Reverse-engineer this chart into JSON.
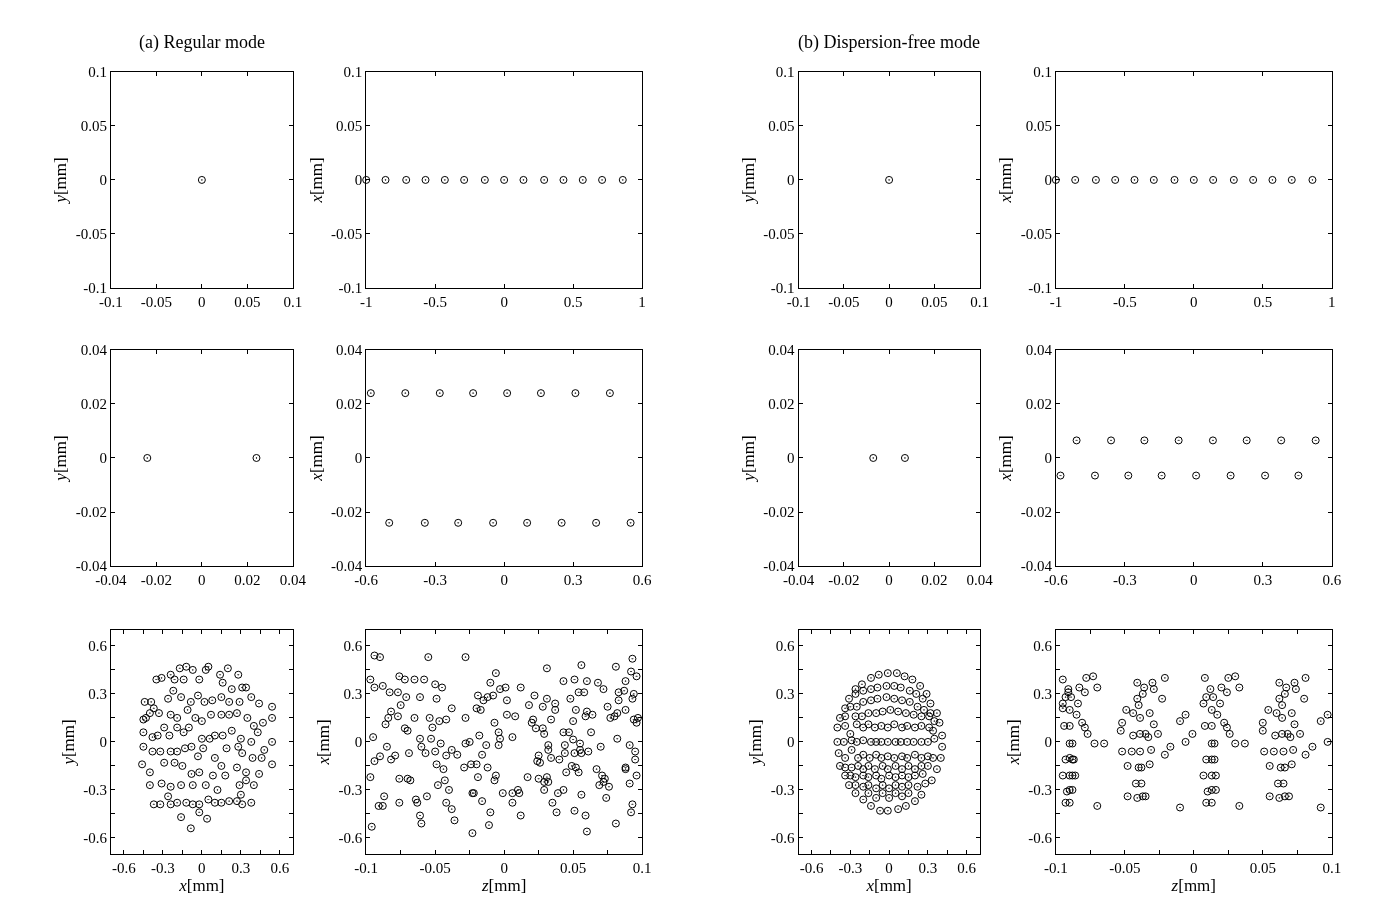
{
  "chart_data": [
    {
      "type": "scatter",
      "title": "(a) Regular mode",
      "ylabel": "y[mm]",
      "marker": "circle",
      "color": "#000000",
      "x": [
        0
      ],
      "values": [
        0
      ],
      "xlim": [
        -0.1,
        0.1
      ],
      "ylim": [
        -0.1,
        0.1
      ],
      "xticks": [
        -0.1,
        -0.05,
        0,
        0.05,
        0.1
      ],
      "yticks": [
        -0.1,
        -0.05,
        0,
        0.05,
        0.1
      ]
    },
    {
      "type": "scatter",
      "ylabel": "x[mm]",
      "marker": "circle",
      "color": "#000000",
      "x": [
        -1,
        -0.86,
        -0.71,
        -0.57,
        -0.43,
        -0.29,
        -0.14,
        0,
        0.14,
        0.29,
        0.43,
        0.57,
        0.71,
        0.86
      ],
      "values": [
        0,
        0,
        0,
        0,
        0,
        0,
        0,
        0,
        0,
        0,
        0,
        0,
        0,
        0
      ],
      "xlim": [
        -1,
        1
      ],
      "ylim": [
        -0.1,
        0.1
      ],
      "xticks": [
        -1,
        -0.5,
        0,
        0.5,
        1
      ],
      "yticks": [
        -0.1,
        -0.05,
        0,
        0.05,
        0.1
      ]
    },
    {
      "type": "scatter",
      "title": "(b) Dispersion-free mode",
      "ylabel": "y[mm]",
      "marker": "circle",
      "color": "#000000",
      "x": [
        0
      ],
      "values": [
        0
      ],
      "xlim": [
        -0.1,
        0.1
      ],
      "ylim": [
        -0.1,
        0.1
      ],
      "xticks": [
        -0.1,
        -0.05,
        0,
        0.05,
        0.1
      ],
      "yticks": [
        -0.1,
        -0.05,
        0,
        0.05,
        0.1
      ]
    },
    {
      "type": "scatter",
      "ylabel": "x[mm]",
      "marker": "circle",
      "color": "#000000",
      "x": [
        -1,
        -0.86,
        -0.71,
        -0.57,
        -0.43,
        -0.29,
        -0.14,
        0,
        0.14,
        0.29,
        0.43,
        0.57,
        0.71,
        0.86
      ],
      "values": [
        0,
        0,
        0,
        0,
        0,
        0,
        0,
        0,
        0,
        0,
        0,
        0,
        0,
        0
      ],
      "xlim": [
        -1,
        1
      ],
      "ylim": [
        -0.1,
        0.1
      ],
      "xticks": [
        -1,
        -0.5,
        0,
        0.5,
        1
      ],
      "yticks": [
        -0.1,
        -0.05,
        0,
        0.05,
        0.1
      ]
    },
    {
      "type": "scatter",
      "ylabel": "y[mm]",
      "marker": "circle",
      "color": "#000000",
      "x": [
        -0.024,
        0.024
      ],
      "values": [
        0,
        0
      ],
      "xlim": [
        -0.04,
        0.04
      ],
      "ylim": [
        -0.04,
        0.04
      ],
      "xticks": [
        -0.04,
        -0.02,
        0,
        0.02,
        0.04
      ],
      "yticks": [
        -0.04,
        -0.02,
        0,
        0.02,
        0.04
      ]
    },
    {
      "type": "scatter",
      "ylabel": "x[mm]",
      "marker": "circle",
      "color": "#000000",
      "x": [
        -0.58,
        -0.43,
        -0.28,
        -0.135,
        0.013,
        0.16,
        0.31,
        0.46,
        -0.5,
        -0.345,
        -0.2,
        -0.048,
        0.1,
        0.25,
        0.4,
        0.55
      ],
      "values": [
        0.024,
        0.024,
        0.024,
        0.024,
        0.024,
        0.024,
        0.024,
        0.024,
        -0.024,
        -0.024,
        -0.024,
        -0.024,
        -0.024,
        -0.024,
        -0.024,
        -0.024
      ],
      "xlim": [
        -0.6,
        0.6
      ],
      "ylim": [
        -0.04,
        0.04
      ],
      "xticks": [
        -0.6,
        -0.3,
        0,
        0.3,
        0.6
      ],
      "yticks": [
        -0.04,
        -0.02,
        0,
        0.02,
        0.04
      ]
    },
    {
      "type": "scatter",
      "ylabel": "y[mm]",
      "marker": "circle",
      "color": "#000000",
      "x": [
        -0.007,
        0.007
      ],
      "values": [
        0,
        0
      ],
      "xlim": [
        -0.04,
        0.04
      ],
      "ylim": [
        -0.04,
        0.04
      ],
      "xticks": [
        -0.04,
        -0.02,
        0,
        0.02,
        0.04
      ],
      "yticks": [
        -0.04,
        -0.02,
        0,
        0.02,
        0.04
      ]
    },
    {
      "type": "scatter",
      "ylabel": "x[mm]",
      "marker": "circle",
      "color": "#000000",
      "x": [
        -0.51,
        -0.36,
        -0.215,
        -0.066,
        0.083,
        0.23,
        0.38,
        0.53,
        -0.58,
        -0.43,
        -0.285,
        -0.14,
        0.01,
        0.16,
        0.31,
        0.455
      ],
      "values": [
        0.0065,
        0.0065,
        0.0065,
        0.0065,
        0.0065,
        0.0065,
        0.0065,
        0.0065,
        -0.0065,
        -0.0065,
        -0.0065,
        -0.0065,
        -0.0065,
        -0.0065,
        -0.0065,
        -0.0065
      ],
      "xlim": [
        -0.6,
        0.6
      ],
      "ylim": [
        -0.04,
        0.04
      ],
      "xticks": [
        -0.6,
        -0.3,
        0,
        0.3,
        0.6
      ],
      "yticks": [
        -0.04,
        -0.02,
        0,
        0.02,
        0.04
      ]
    },
    {
      "type": "scatter",
      "xlabel": "x[mm]",
      "ylabel": "y[mm]",
      "marker": "circle",
      "color": "#000000",
      "xlim": [
        -0.7,
        0.7
      ],
      "ylim": [
        -0.7,
        0.7
      ],
      "xticks": [
        -0.6,
        {
          "value": -0.45,
          "label": null
        },
        -0.3,
        {
          "value": -0.15,
          "label": null
        },
        0,
        {
          "value": 0.15,
          "label": null
        },
        0.3,
        {
          "value": 0.45,
          "label": null
        },
        0.6
      ],
      "yticks": [
        -0.6,
        {
          "value": -0.45,
          "label": null
        },
        -0.3,
        {
          "value": -0.15,
          "label": null
        },
        0,
        {
          "value": 0.15,
          "label": null
        },
        0.3,
        {
          "value": 0.45,
          "label": null
        },
        0.6
      ],
      "x": [
        -0.17,
        -0.12,
        -0.07,
        0.03,
        0.05,
        0.2,
        0.28,
        0.14,
        -0.35,
        -0.31,
        -0.24,
        -0.21,
        -0.14,
        -0.02,
        0.16,
        0.23,
        0.31,
        0.34,
        -0.22,
        -0.26,
        -0.16,
        -0.085,
        -0.03,
        0.02,
        0.08,
        0.15,
        0.21,
        0.29,
        0.38,
        0.44,
        0.54,
        -0.44,
        -0.39,
        -0.37,
        -0.45,
        -0.43,
        -0.4,
        -0.33,
        -0.24,
        -0.19,
        -0.11,
        -0.05,
        0,
        0.07,
        0.15,
        0.21,
        0.27,
        0.35,
        0.4,
        0.47,
        0.54,
        -0.45,
        -0.38,
        -0.34,
        -0.29,
        -0.25,
        -0.19,
        -0.14,
        -0.1,
        0,
        0.06,
        0.1,
        0.16,
        0.23,
        0.3,
        0.38,
        0.43,
        0.54,
        -0.45,
        -0.38,
        -0.32,
        -0.24,
        -0.19,
        -0.13,
        -0.08,
        -0.03,
        0.01,
        0.1,
        0.19,
        0.28,
        0.31,
        0.39,
        0.46,
        0.48,
        0.54,
        -0.46,
        -0.4,
        -0.29,
        -0.21,
        -0.15,
        -0.08,
        -0.02,
        0.085,
        0.15,
        0.18,
        0.27,
        0.34,
        0.44,
        -0.4,
        -0.31,
        -0.24,
        -0.16,
        -0.07,
        0.03,
        0.12,
        0.29,
        0.34,
        0.4,
        -0.37,
        -0.32,
        -0.26,
        -0.24,
        -0.19,
        -0.12,
        -0.07,
        -0.02,
        0.05,
        0.1,
        0.15,
        0.21,
        0.27,
        0.3,
        0.31,
        0.38,
        -0.16,
        0.04,
        -0.085,
        -0.02
      ],
      "values": [
        0.46,
        0.47,
        0.45,
        0.45,
        0.47,
        0.46,
        0.42,
        0.42,
        0.39,
        0.4,
        0.42,
        0.39,
        0.39,
        0.39,
        0.37,
        0.33,
        0.34,
        0.34,
        0.32,
        0.27,
        0.28,
        0.25,
        0.29,
        0.25,
        0.26,
        0.28,
        0.25,
        0.25,
        0.28,
        0.24,
        0.22,
        0.25,
        0.25,
        0.21,
        0.14,
        0.15,
        0.18,
        0.18,
        0.17,
        0.15,
        0.2,
        0.15,
        0.13,
        0.17,
        0.17,
        0.17,
        0.18,
        0.15,
        0.1,
        0.12,
        0.15,
        0.06,
        0.03,
        0.04,
        0.09,
        0.04,
        0.09,
        0.06,
        0.09,
        0.02,
        0.02,
        0.04,
        0.04,
        0.07,
        0.02,
        0,
        0.06,
        0,
        -0.03,
        -0.06,
        -0.06,
        -0.06,
        -0.06,
        -0.04,
        -0.03,
        -0.09,
        -0.04,
        -0.1,
        -0.04,
        -0.03,
        -0.07,
        -0.1,
        -0.1,
        -0.05,
        -0.14,
        -0.14,
        -0.19,
        -0.13,
        -0.13,
        -0.15,
        -0.2,
        -0.19,
        -0.21,
        -0.15,
        -0.21,
        -0.16,
        -0.19,
        -0.2,
        -0.27,
        -0.26,
        -0.28,
        -0.27,
        -0.27,
        -0.27,
        -0.3,
        -0.27,
        -0.24,
        -0.27,
        -0.39,
        -0.39,
        -0.34,
        -0.39,
        -0.38,
        -0.38,
        -0.39,
        -0.39,
        -0.36,
        -0.38,
        -0.38,
        -0.37,
        -0.37,
        -0.33,
        -0.39,
        -0.38,
        -0.47,
        -0.48,
        -0.54,
        -0.44
      ]
    },
    {
      "type": "scatter",
      "xlabel": "z[mm]",
      "ylabel": "x[mm]",
      "marker": "circle",
      "color": "#000000",
      "xlim": [
        -0.1,
        0.1
      ],
      "ylim": [
        -0.7,
        0.7
      ],
      "xticks": [
        -0.1,
        {
          "value": -0.075,
          "label": null
        },
        -0.05,
        {
          "value": -0.025,
          "label": null
        },
        0,
        {
          "value": 0.025,
          "label": null
        },
        0.05,
        {
          "value": 0.075,
          "label": null
        },
        0.1
      ],
      "yticks": [
        -0.6,
        {
          "value": -0.45,
          "label": null
        },
        -0.3,
        {
          "value": -0.15,
          "label": null
        },
        0,
        {
          "value": 0.15,
          "label": null
        },
        0.3,
        {
          "value": 0.45,
          "label": null
        },
        0.6
      ],
      "x": [
        -0.097,
        -0.097,
        -0.096,
        -0.095,
        -0.094,
        -0.094,
        -0.09,
        -0.094,
        -0.091,
        -0.09,
        -0.088,
        -0.088,
        -0.087,
        -0.086,
        -0.085,
        -0.084,
        -0.083,
        -0.082,
        -0.082,
        -0.079,
        -0.077,
        -0.077,
        -0.076,
        -0.076,
        -0.076,
        -0.075,
        -0.072,
        -0.072,
        -0.071,
        -0.07,
        -0.07,
        -0.069,
        -0.068,
        -0.065,
        -0.065,
        -0.064,
        -0.063,
        -0.061,
        -0.061,
        -0.061,
        -0.06,
        -0.06,
        -0.058,
        -0.057,
        -0.056,
        -0.055,
        -0.054,
        -0.053,
        -0.052,
        -0.05,
        -0.049,
        -0.049,
        -0.05,
        -0.048,
        -0.047,
        -0.046,
        -0.045,
        -0.044,
        -0.043,
        -0.042,
        -0.042,
        -0.042,
        -0.04,
        -0.038,
        -0.038,
        -0.038,
        -0.036,
        -0.034,
        -0.029,
        -0.028,
        -0.028,
        -0.028,
        -0.025,
        -0.024,
        -0.023,
        -0.023,
        -0.022,
        -0.02,
        -0.02,
        -0.019,
        -0.019,
        -0.018,
        -0.017,
        -0.016,
        -0.016,
        -0.015,
        -0.013,
        -0.012,
        -0.012,
        -0.011,
        -0.01,
        -0.01,
        -0.008,
        -0.007,
        -0.007,
        -0.006,
        -0.006,
        -0.004,
        -0.004,
        -0.003,
        -0.003,
        -0.001,
        0.001,
        0.002,
        0.002,
        0.006,
        0.006,
        0.006,
        0.008,
        0.01,
        0.011,
        0.012,
        0.012,
        0.017,
        0.018,
        0.02,
        0.021,
        0.022,
        0.023,
        0.024,
        0.025,
        0.025,
        0.026,
        0.028,
        0.028,
        0.029,
        0.029,
        0.029,
        0.031,
        0.031,
        0.031,
        0.032,
        0.032,
        0.032,
        0.034,
        0.034,
        0.035,
        0.037,
        0.037,
        0.038,
        0.039,
        0.04,
        0.043,
        0.043,
        0.043,
        0.044,
        0.044,
        0.045,
        0.047,
        0.048,
        0.049,
        0.05,
        0.05,
        0.051,
        0.051,
        0.051,
        0.052,
        0.052,
        0.054,
        0.054,
        0.055,
        0.055,
        0.056,
        0.056,
        0.056,
        0.058,
        0.059,
        0.059,
        0.06,
        0.06,
        0.06,
        0.061,
        0.063,
        0.064,
        0.067,
        0.068,
        0.069,
        0.07,
        0.071,
        0.072,
        0.072,
        0.073,
        0.075,
        0.074,
        0.076,
        0.077,
        0.08,
        0.081,
        0.081,
        0.082,
        0.082,
        0.083,
        0.083,
        0.087,
        0.088,
        0.088,
        0.088,
        0.088,
        0.091,
        0.091,
        0.092,
        0.092,
        0.093,
        0.093,
        0.093,
        0.094,
        0.094,
        0.095,
        0.095,
        0.096,
        0.096,
        0.096,
        0.097
      ],
      "values": [
        -0.22,
        0.39,
        -0.53,
        0.03,
        0.34,
        0.54,
        0.53,
        -0.12,
        -0.4,
        -0.09,
        0.35,
        -0.4,
        -0.34,
        0.11,
        -0.03,
        0.15,
        0.31,
        0.19,
        -0.11,
        -0.085,
        0.16,
        0.31,
        0.41,
        -0.38,
        -0.23,
        0.23,
        0.085,
        0.39,
        0.28,
        0.07,
        -0.23,
        -0.07,
        -0.24,
        0.15,
        0.39,
        -0.36,
        -0.38,
        0.02,
        -0.46,
        0.28,
        -0.03,
        -0.51,
        0.39,
        -0.07,
        -0.34,
        0.53,
        0.15,
        0.02,
        0.09,
        0.36,
        0.27,
        -0.14,
        -0.06,
        -0.27,
        0.13,
        -0.01,
        0.34,
        -0.17,
        -0.24,
        -0.085,
        -0.38,
        0.14,
        -0.3,
        0.21,
        -0.42,
        -0.05,
        -0.49,
        -0.08,
        -0.16,
        0.15,
        0.53,
        -0.01,
        0,
        -0.14,
        -0.32,
        -0.57,
        -0.32,
        -0.14,
        0.21,
        -0.22,
        0.29,
        0.04,
        0.2,
        -0.08,
        -0.37,
        0.26,
        -0.02,
        -0.16,
        0.28,
        -0.52,
        -0.44,
        0.37,
        0.29,
        -0.24,
        0.12,
        0.43,
        -0.21,
        0.06,
        -0.02,
        0.33,
        0.02,
        -0.32,
        0.34,
        0.26,
        0.17,
        -0.32,
        -0.38,
        0.03,
        0.16,
        -0.3,
        -0.32,
        -0.46,
        0.34,
        -0.22,
        0.23,
        0.12,
        0.14,
        0.29,
        0.085,
        -0.12,
        -0.23,
        -0.085,
        -0.13,
        0.22,
        0.085,
        0.05,
        -0.25,
        -0.3,
        -0.22,
        0.27,
        0.46,
        -0.25,
        -0.05,
        -0.02,
        -0.1,
        0.14,
        -0.38,
        0.24,
        0.2,
        -0.44,
        -0.32,
        -0.11,
        -0.3,
        0.38,
        0.06,
        -0.02,
        -0.07,
        -0.19,
        0.06,
        0.27,
        -0.15,
        0.015,
        0.13,
        -0.07,
        0.39,
        -0.43,
        -0.16,
        0.2,
        0.31,
        -0.19,
        -0.01,
        -0.05,
        -0.07,
        0.48,
        -0.33,
        0.31,
        -0.46,
        0.16,
        -0.56,
        0.38,
        0.19,
        -0.06,
        0.06,
        0.17,
        -0.17,
        0.37,
        -0.27,
        -0.03,
        -0.21,
        0.33,
        -0.25,
        -0.23,
        0.22,
        -0.35,
        -0.28,
        0.15,
        0.16,
        0.47,
        -0.51,
        0.18,
        0.02,
        0.26,
        0.31,
        0.32,
        0.2,
        -0.16,
        0.38,
        -0.17,
        -0.02,
        -0.26,
        -0.44,
        0.44,
        0.27,
        -0.39,
        0.52,
        0.3,
        0.14,
        -0.06,
        -0.11,
        0.12,
        0.41,
        -0.21,
        0.15
      ]
    },
    {
      "type": "scatter",
      "xlabel": "x[mm]",
      "ylabel": "y[mm]",
      "marker": "circle",
      "color": "#000000",
      "xlim": [
        -0.7,
        0.7
      ],
      "ylim": [
        -0.7,
        0.7
      ],
      "xticks": [
        -0.6,
        {
          "value": -0.45,
          "label": null
        },
        -0.3,
        {
          "value": -0.15,
          "label": null
        },
        0,
        {
          "value": 0.15,
          "label": null
        },
        0.3,
        {
          "value": 0.45,
          "label": null
        },
        0.6
      ],
      "yticks": [
        -0.6,
        {
          "value": -0.45,
          "label": null
        },
        -0.3,
        {
          "value": -0.15,
          "label": null
        },
        0,
        {
          "value": 0.15,
          "label": null
        },
        0.3,
        {
          "value": 0.45,
          "label": null
        },
        0.6
      ],
      "x": [
        -0.26,
        -0.21,
        -0.14,
        -0.08,
        -0.01,
        0.06,
        0.12,
        0.18,
        0.24,
        0.29,
        -0.31,
        -0.26,
        -0.2,
        -0.14,
        -0.09,
        -0.02,
        0.04,
        0.09,
        0.16,
        0.21,
        0.26,
        0.32,
        -0.34,
        -0.3,
        -0.25,
        -0.2,
        -0.14,
        -0.09,
        -0.02,
        0.04,
        0.1,
        0.16,
        0.22,
        0.27,
        0.32,
        0.37,
        -0.38,
        -0.34,
        -0.26,
        -0.21,
        -0.16,
        -0.1,
        -0.05,
        0.01,
        0.07,
        0.13,
        0.19,
        0.25,
        0.31,
        0.35,
        0.39,
        -0.4,
        -0.34,
        -0.3,
        -0.25,
        -0.2,
        -0.16,
        -0.11,
        -0.06,
        -0.01,
        0.04,
        0.1,
        0.14,
        0.2,
        0.25,
        0.31,
        0.34,
        0.41,
        -0.4,
        -0.35,
        -0.29,
        -0.25,
        -0.2,
        -0.14,
        -0.1,
        -0.06,
        -0.01,
        0.05,
        0.09,
        0.14,
        0.19,
        0.25,
        0.3,
        0.35,
        0.41,
        -0.39,
        -0.34,
        -0.29,
        -0.24,
        -0.2,
        -0.15,
        -0.1,
        -0.06,
        -0.01,
        0.04,
        0.1,
        0.14,
        0.2,
        0.25,
        0.3,
        0.34,
        0.4,
        -0.38,
        -0.34,
        -0.29,
        -0.24,
        -0.2,
        -0.16,
        -0.11,
        -0.05,
        -0.01,
        0.05,
        0.1,
        0.15,
        0.2,
        0.25,
        0.3,
        0.37,
        -0.34,
        -0.3,
        -0.26,
        -0.2,
        -0.16,
        -0.1,
        -0.06,
        0,
        0.05,
        0.1,
        0.15,
        0.2,
        0.26,
        0.33,
        -0.31,
        -0.26,
        -0.2,
        -0.16,
        -0.1,
        -0.05,
        0,
        0.05,
        0.1,
        0.15,
        0.22,
        0.28,
        -0.26,
        -0.2,
        -0.16,
        -0.1,
        -0.05,
        0,
        0.05,
        0.1,
        0.15,
        0.2,
        0.25,
        -0.14,
        -0.07,
        -0.01,
        0.07,
        0.13
      ],
      "values": [
        0.33,
        0.36,
        0.4,
        0.42,
        0.43,
        0.43,
        0.41,
        0.39,
        0.35,
        0.3,
        0.27,
        0.3,
        0.32,
        0.33,
        0.34,
        0.35,
        0.35,
        0.34,
        0.32,
        0.3,
        0.27,
        0.24,
        0.21,
        0.22,
        0.22,
        0.25,
        0.26,
        0.27,
        0.28,
        0.27,
        0.26,
        0.25,
        0.22,
        0.2,
        0.18,
        0.18,
        0.15,
        0.16,
        0.16,
        0.16,
        0.18,
        0.18,
        0.19,
        0.2,
        0.19,
        0.18,
        0.17,
        0.16,
        0.16,
        0.13,
        0.12,
        0.09,
        0.1,
        0.05,
        0.11,
        0.09,
        0.11,
        0.09,
        0.1,
        0.09,
        0.11,
        0.09,
        0.1,
        0.09,
        0.1,
        0.09,
        0.07,
        0.04,
        0,
        0,
        0.01,
        0,
        0.01,
        0,
        0,
        0,
        0,
        0,
        0,
        0,
        0,
        0,
        0,
        0.02,
        -0.03,
        -0.07,
        -0.1,
        -0.05,
        -0.1,
        -0.08,
        -0.1,
        -0.08,
        -0.1,
        -0.09,
        -0.1,
        -0.09,
        -0.1,
        -0.08,
        -0.1,
        -0.09,
        -0.1,
        -0.1,
        -0.15,
        -0.16,
        -0.16,
        -0.15,
        -0.17,
        -0.15,
        -0.17,
        -0.15,
        -0.17,
        -0.15,
        -0.17,
        -0.15,
        -0.17,
        -0.15,
        -0.15,
        -0.17,
        -0.21,
        -0.21,
        -0.22,
        -0.21,
        -0.22,
        -0.21,
        -0.23,
        -0.21,
        -0.22,
        -0.21,
        -0.22,
        -0.21,
        -0.2,
        -0.24,
        -0.27,
        -0.27,
        -0.28,
        -0.27,
        -0.29,
        -0.27,
        -0.29,
        -0.27,
        -0.28,
        -0.27,
        -0.28,
        -0.26,
        -0.32,
        -0.36,
        -0.32,
        -0.35,
        -0.32,
        -0.35,
        -0.32,
        -0.34,
        -0.32,
        -0.37,
        -0.33,
        -0.4,
        -0.43,
        -0.43,
        -0.42,
        -0.4
      ]
    },
    {
      "type": "scatter",
      "xlabel": "z[mm]",
      "ylabel": "x[mm]",
      "marker": "circle",
      "color": "#000000",
      "xlim": [
        -0.1,
        0.1
      ],
      "ylim": [
        -0.7,
        0.7
      ],
      "xticks": [
        -0.1,
        {
          "value": -0.075,
          "label": null
        },
        -0.05,
        {
          "value": -0.025,
          "label": null
        },
        0,
        {
          "value": 0.025,
          "label": null
        },
        0.05,
        {
          "value": 0.075,
          "label": null
        },
        0.1
      ],
      "yticks": [
        -0.6,
        {
          "value": -0.45,
          "label": null
        },
        -0.3,
        {
          "value": -0.15,
          "label": null
        },
        0,
        {
          "value": 0.15,
          "label": null
        },
        0.3,
        {
          "value": 0.45,
          "label": null
        },
        0.6
      ],
      "x": [
        -0.095,
        -0.095,
        -0.095,
        -0.095,
        -0.094,
        -0.093,
        -0.093,
        -0.093,
        -0.092,
        -0.091,
        -0.091,
        -0.09,
        -0.09,
        -0.09,
        -0.09,
        -0.09,
        -0.09,
        -0.09,
        -0.089,
        -0.088,
        -0.088,
        -0.088,
        -0.088,
        -0.087,
        -0.086,
        -0.085,
        -0.084,
        -0.083,
        -0.081,
        -0.079,
        -0.079,
        -0.078,
        -0.077,
        -0.073,
        -0.072,
        -0.07,
        -0.07,
        -0.065,
        -0.053,
        -0.052,
        -0.052,
        -0.049,
        -0.048,
        -0.048,
        -0.045,
        -0.044,
        -0.044,
        -0.042,
        -0.041,
        -0.041,
        -0.041,
        -0.04,
        -0.04,
        -0.039,
        -0.039,
        -0.039,
        -0.038,
        -0.038,
        -0.037,
        -0.037,
        -0.036,
        -0.035,
        -0.035,
        -0.033,
        -0.032,
        -0.032,
        -0.031,
        -0.03,
        -0.029,
        -0.029,
        -0.026,
        -0.023,
        -0.021,
        -0.021,
        -0.017,
        -0.01,
        -0.01,
        -0.006,
        -0.006,
        -0.001,
        0.007,
        0.007,
        0.008,
        0.008,
        0.009,
        0.009,
        0.009,
        0.01,
        0.012,
        0.013,
        0.013,
        0.013,
        0.013,
        0.013,
        0.013,
        0.013,
        0.014,
        0.015,
        0.015,
        0.016,
        0.016,
        0.017,
        0.019,
        0.02,
        0.022,
        0.024,
        0.024,
        0.026,
        0.025,
        0.03,
        0.03,
        0.033,
        0.033,
        0.037,
        0.05,
        0.05,
        0.051,
        0.054,
        0.055,
        0.055,
        0.058,
        0.059,
        0.06,
        0.061,
        0.062,
        0.062,
        0.062,
        0.063,
        0.064,
        0.064,
        0.064,
        0.065,
        0.065,
        0.066,
        0.066,
        0.066,
        0.067,
        0.068,
        0.069,
        0.07,
        0.071,
        0.071,
        0.072,
        0.073,
        0.074,
        0.073,
        0.077,
        0.08,
        0.081,
        0.081,
        0.086,
        0.092,
        0.092,
        0.097,
        0.097
      ],
      "values": [
        0.21,
        0.24,
        0.39,
        -0.21,
        0.1,
        0.28,
        -0.11,
        -0.38,
        -0.31,
        0.33,
        0.31,
        0.2,
        0.1,
        -0.01,
        -0.1,
        -0.21,
        -0.3,
        -0.38,
        0.28,
        -0.01,
        -0.11,
        -0.21,
        -0.3,
        -0.11,
        -0.21,
        0.17,
        0.24,
        0.34,
        0.12,
        0.31,
        0.09,
        0.4,
        0.05,
        0.41,
        -0.01,
        -0.4,
        0.34,
        -0.01,
        0.07,
        0.12,
        -0.06,
        0.2,
        -0.15,
        -0.34,
        -0.06,
        0.04,
        0.18,
        -0.26,
        0.37,
        -0.35,
        0.27,
        -0.16,
        0.23,
        0.15,
        0.05,
        -0.06,
        -0.26,
        -0.16,
        -0.34,
        0.3,
        0.34,
        0.05,
        -0.34,
        0.03,
        0.18,
        -0.14,
        -0.05,
        0.37,
        0.33,
        0.11,
        0.05,
        0.27,
        -0.08,
        0.4,
        -0.03,
        -0.41,
        0.13,
        0,
        0.17,
        0.05,
        0.24,
        -0.21,
        0.4,
        0.1,
        0.28,
        -0.11,
        -0.38,
        -0.31,
        0.33,
        0.2,
        0.1,
        -0.01,
        -0.11,
        -0.21,
        -0.3,
        -0.38,
        0.28,
        -0.01,
        -0.11,
        -0.21,
        -0.3,
        0.17,
        0.24,
        0.34,
        0.12,
        0.09,
        0.31,
        0.05,
        0.4,
        0.41,
        -0.01,
        -0.4,
        0.34,
        -0.01,
        0.07,
        0.12,
        -0.06,
        0.2,
        -0.15,
        -0.34,
        -0.06,
        0.04,
        0.18,
        -0.26,
        0.37,
        -0.35,
        0.27,
        -0.16,
        0.23,
        0.15,
        0.05,
        -0.06,
        -0.26,
        -0.16,
        -0.34,
        0.3,
        0.34,
        0.05,
        -0.34,
        0.03,
        0.18,
        -0.14,
        -0.05,
        0.37,
        0.33,
        0.11,
        0.05,
        0.27,
        -0.08,
        0.4,
        -0.03,
        -0.41,
        0.13,
        0,
        0.17
      ]
    }
  ]
}
